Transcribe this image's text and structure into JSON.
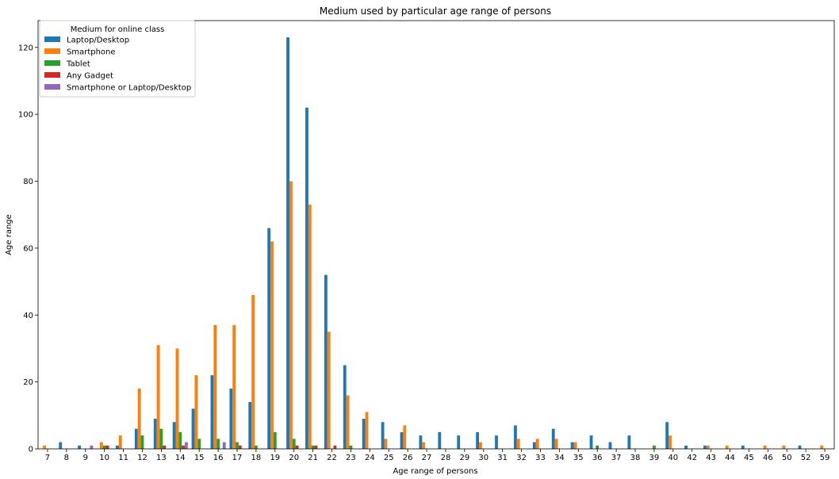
{
  "chart_data": {
    "type": "bar",
    "title": "Medium used by particular age range of persons",
    "xlabel": "Age range of persons",
    "ylabel": "Age range",
    "ylim": [
      0,
      128
    ],
    "yticks": [
      0,
      20,
      40,
      60,
      80,
      100,
      120
    ],
    "grid": false,
    "legend": {
      "title": "Medium for online class",
      "placement": "top-left"
    },
    "categories": [
      "7",
      "8",
      "9",
      "10",
      "11",
      "12",
      "13",
      "14",
      "15",
      "16",
      "17",
      "18",
      "19",
      "20",
      "21",
      "22",
      "23",
      "24",
      "25",
      "26",
      "27",
      "28",
      "29",
      "30",
      "31",
      "32",
      "33",
      "34",
      "35",
      "36",
      "37",
      "38",
      "39",
      "40",
      "42",
      "43",
      "44",
      "45",
      "46",
      "50",
      "52",
      "59"
    ],
    "series": [
      {
        "name": "Laptop/Desktop",
        "color": "#1f77b4",
        "values": [
          0,
          2,
          1,
          0,
          1,
          6,
          9,
          8,
          12,
          22,
          18,
          14,
          66,
          123,
          102,
          52,
          25,
          9,
          8,
          5,
          4,
          5,
          4,
          5,
          4,
          7,
          2,
          6,
          2,
          4,
          2,
          4,
          0,
          8,
          1,
          1,
          0,
          1,
          0,
          0,
          1,
          0
        ]
      },
      {
        "name": "Smartphone",
        "color": "#ff7f0e",
        "values": [
          1,
          0,
          0,
          2,
          4,
          18,
          31,
          30,
          22,
          37,
          37,
          46,
          62,
          80,
          73,
          35,
          16,
          11,
          3,
          7,
          2,
          0,
          0,
          2,
          0,
          3,
          3,
          3,
          2,
          0,
          0,
          0,
          0,
          4,
          0,
          1,
          1,
          0,
          1,
          1,
          0,
          1
        ]
      },
      {
        "name": "Tablet",
        "color": "#2ca02c",
        "values": [
          0,
          0,
          0,
          1,
          0,
          4,
          6,
          5,
          3,
          3,
          2,
          1,
          5,
          3,
          1,
          0,
          1,
          0,
          0,
          0,
          0,
          0,
          0,
          0,
          0,
          0,
          0,
          0,
          0,
          1,
          0,
          0,
          1,
          0,
          0,
          0,
          0,
          0,
          0,
          0,
          0,
          0
        ]
      },
      {
        "name": "Any Gadget",
        "color": "#d62728",
        "values": [
          0,
          0,
          0,
          1,
          0,
          0,
          1,
          1,
          0,
          0,
          1,
          0,
          0,
          1,
          1,
          1,
          0,
          0,
          0,
          0,
          0,
          0,
          0,
          0,
          0,
          0,
          0,
          0,
          0,
          0,
          0,
          0,
          0,
          0,
          0,
          0,
          0,
          0,
          0,
          0,
          0,
          0
        ]
      },
      {
        "name": "Smartphone or Laptop/Desktop",
        "color": "#9467bd",
        "values": [
          0,
          0,
          1,
          0,
          0,
          0,
          0,
          2,
          0,
          2,
          0,
          0,
          0,
          0,
          0,
          0,
          0,
          0,
          0,
          0,
          0,
          0,
          0,
          0,
          0,
          0,
          0,
          0,
          0,
          0,
          0,
          0,
          0,
          0,
          0,
          0,
          0,
          0,
          0,
          0,
          0,
          0
        ]
      }
    ]
  }
}
